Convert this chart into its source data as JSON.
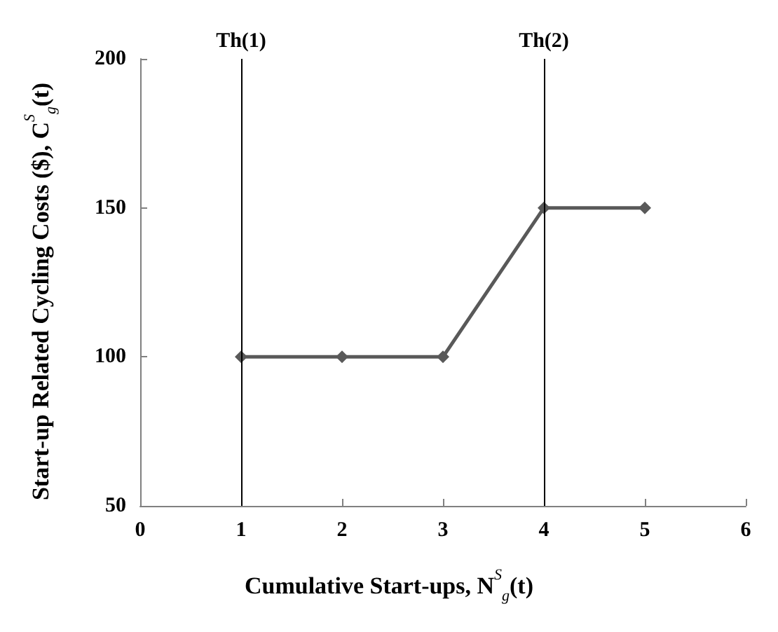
{
  "chart_data": {
    "type": "line",
    "xlabel": "Cumulative Start-ups, N$^{S}$$_{g}$(t)",
    "ylabel": "Start-up Related Cycling Costs ($), C$^{S}$$_{g}$(t)",
    "x": [
      1,
      2,
      3,
      4,
      5
    ],
    "series": [
      {
        "color": "#595959",
        "values": [
          100,
          100,
          100,
          150,
          150
        ]
      }
    ],
    "xlim": [
      0,
      6
    ],
    "xticks": [
      0,
      1,
      2,
      3,
      4,
      5,
      6
    ],
    "ylim": [
      50,
      200
    ],
    "yticks": [
      50,
      100,
      150,
      200
    ],
    "ref_lines": [
      {
        "axis": "x",
        "value": 1,
        "label": "Th(1)",
        "color": "#000000"
      },
      {
        "axis": "x",
        "value": 4,
        "label": "Th(2)",
        "color": "#000000"
      }
    ],
    "marker": "diamond",
    "line_style": "solid"
  }
}
